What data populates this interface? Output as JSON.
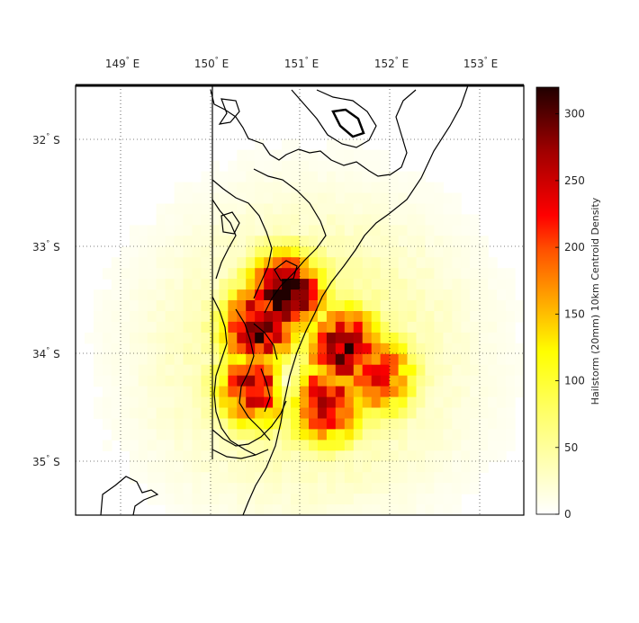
{
  "figure": {
    "lon_ticks": [
      {
        "deg": "149",
        "suffix": "E"
      },
      {
        "deg": "150",
        "suffix": "E"
      },
      {
        "deg": "151",
        "suffix": "E"
      },
      {
        "deg": "152",
        "suffix": "E"
      },
      {
        "deg": "153",
        "suffix": "E"
      }
    ],
    "lat_ticks": [
      {
        "deg": "32",
        "suffix": "S"
      },
      {
        "deg": "33",
        "suffix": "S"
      },
      {
        "deg": "34",
        "suffix": "S"
      },
      {
        "deg": "35",
        "suffix": "S"
      }
    ],
    "colorbar": {
      "label": "Hailstorm (20mm) 10km Centroid Density",
      "ticks": [
        "0",
        "50",
        "100",
        "150",
        "200",
        "250",
        "300"
      ],
      "range": [
        0,
        320
      ],
      "colormap": "hot (reversed)"
    },
    "map_extent": {
      "lon": [
        148.5,
        153.5
      ],
      "lat_min_S": 35.5,
      "lat_max_S": 31.5
    },
    "grid": "dotted",
    "density_peak_approx": 315,
    "colors": {
      "low": "#ffffff",
      "mid_yellow": "#ffff00",
      "mid_red": "#ff0000",
      "high": "#1a0000"
    }
  },
  "chart_data": {
    "type": "heatmap",
    "description_fields": {
      "x": "longitude (°E)",
      "y": "latitude (°S)"
    },
    "xlim": [
      148.5,
      153.5
    ],
    "ylim_S": [
      35.5,
      31.5
    ],
    "clim": [
      0,
      320
    ],
    "hotspots": [
      {
        "lon": 150.85,
        "lat_S": 33.45,
        "value": 315
      },
      {
        "lon": 150.55,
        "lat_S": 33.75,
        "value": 290
      },
      {
        "lon": 151.5,
        "lat_S": 33.95,
        "value": 280
      },
      {
        "lon": 151.3,
        "lat_S": 34.45,
        "value": 260
      },
      {
        "lon": 150.5,
        "lat_S": 34.3,
        "value": 250
      },
      {
        "lon": 151.85,
        "lat_S": 34.2,
        "value": 230
      }
    ]
  }
}
